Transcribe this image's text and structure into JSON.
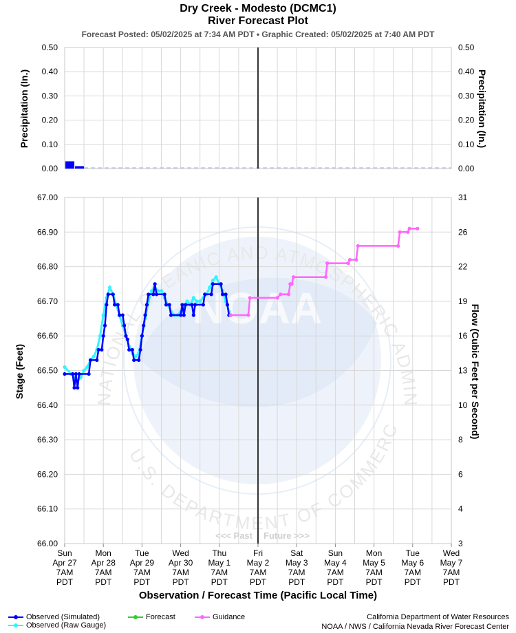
{
  "header": {
    "title": "Dry Creek - Modesto (DCMC1)",
    "subtitle": "River Forecast Plot",
    "posted": "Forecast Posted: 05/02/2025 at 7:34 AM PDT  •  Graphic Created: 05/02/2025 at 7:40 AM PDT"
  },
  "chart_data": [
    {
      "type": "bar",
      "ylabel": "Precipitation (In.)",
      "ylabel_right": "Precipitation (In.)",
      "ylim": [
        0,
        0.5
      ],
      "yticks": [
        "0.00",
        "0.10",
        "0.20",
        "0.30",
        "0.40",
        "0.50"
      ],
      "x_unit": "hours since Sun Apr 27 7AM PDT",
      "bars": [
        {
          "x0": 0,
          "x1": 6,
          "value": 0.03
        },
        {
          "x0": 6,
          "x1": 12,
          "value": 0.01
        }
      ],
      "grid": true
    },
    {
      "type": "line",
      "ylabel": "Stage (Feet)",
      "ylabel_right": "Flow (Cubic Feet per Second)",
      "xlabel": "Observation / Forecast Time (Pacific Local Time)",
      "ylim": [
        66.0,
        67.0
      ],
      "yticks": [
        "66.00",
        "66.10",
        "66.20",
        "66.30",
        "66.40",
        "66.50",
        "66.60",
        "66.70",
        "66.80",
        "66.90",
        "67.00"
      ],
      "right_ticks": [
        {
          "label": "3",
          "stage": 66.0
        },
        {
          "label": "4",
          "stage": 66.1
        },
        {
          "label": "6",
          "stage": 66.2
        },
        {
          "label": "8",
          "stage": 66.3
        },
        {
          "label": "10",
          "stage": 66.4
        },
        {
          "label": "13",
          "stage": 66.5
        },
        {
          "label": "16",
          "stage": 66.6
        },
        {
          "label": "19",
          "stage": 66.7
        },
        {
          "label": "22",
          "stage": 66.8
        },
        {
          "label": "26",
          "stage": 66.9
        },
        {
          "label": "31",
          "stage": 67.0
        }
      ],
      "x_ticks": [
        [
          "Sun",
          "Apr 27",
          "7AM",
          "PDT"
        ],
        [
          "Mon",
          "Apr 28",
          "7AM",
          "PDT"
        ],
        [
          "Tue",
          "Apr 29",
          "7AM",
          "PDT"
        ],
        [
          "Wed",
          "Apr 30",
          "7AM",
          "PDT"
        ],
        [
          "Thu",
          "May 1",
          "7AM",
          "PDT"
        ],
        [
          "Fri",
          "May 2",
          "7AM",
          "PDT"
        ],
        [
          "Sat",
          "May 3",
          "7AM",
          "PDT"
        ],
        [
          "Sun",
          "May 4",
          "7AM",
          "PDT"
        ],
        [
          "Mon",
          "May 5",
          "7AM",
          "PDT"
        ],
        [
          "Tue",
          "May 6",
          "7AM",
          "PDT"
        ],
        [
          "Wed",
          "May 7",
          "7AM",
          "PDT"
        ]
      ],
      "x_unit": "hours since Sun Apr 27 7AM PDT",
      "now_hours": 120,
      "past_label": "<<< Past",
      "future_label": "Future >>>",
      "series": [
        {
          "name": "Observed (Raw Gauge)",
          "color": "#33f3ff",
          "points": [
            [
              0,
              66.51
            ],
            [
              4,
              66.49
            ],
            [
              8,
              66.47
            ],
            [
              10,
              66.48
            ],
            [
              12,
              66.5
            ],
            [
              14,
              66.51
            ],
            [
              16,
              66.53
            ],
            [
              18,
              66.54
            ],
            [
              20,
              66.56
            ],
            [
              22,
              66.6
            ],
            [
              24,
              66.66
            ],
            [
              26,
              66.71
            ],
            [
              28,
              66.74
            ],
            [
              30,
              66.72
            ],
            [
              32,
              66.69
            ],
            [
              34,
              66.66
            ],
            [
              36,
              66.63
            ],
            [
              38,
              66.6
            ],
            [
              40,
              66.57
            ],
            [
              42,
              66.55
            ],
            [
              44,
              66.54
            ],
            [
              46,
              66.55
            ],
            [
              48,
              66.6
            ],
            [
              50,
              66.65
            ],
            [
              52,
              66.7
            ],
            [
              54,
              66.73
            ],
            [
              56,
              66.74
            ],
            [
              58,
              66.73
            ],
            [
              60,
              66.73
            ],
            [
              62,
              66.71
            ],
            [
              64,
              66.69
            ],
            [
              66,
              66.67
            ],
            [
              68,
              66.66
            ],
            [
              70,
              66.66
            ],
            [
              72,
              66.67
            ],
            [
              74,
              66.68
            ],
            [
              76,
              66.7
            ],
            [
              78,
              66.69
            ],
            [
              80,
              66.71
            ],
            [
              82,
              66.7
            ],
            [
              84,
              66.7
            ],
            [
              86,
              66.71
            ],
            [
              88,
              66.72
            ],
            [
              90,
              66.74
            ],
            [
              92,
              66.76
            ],
            [
              94,
              66.77
            ],
            [
              96,
              66.75
            ],
            [
              98,
              66.73
            ],
            [
              100,
              66.7
            ],
            [
              102,
              66.67
            ]
          ]
        },
        {
          "name": "Observed (Simulated)",
          "color": "#0000ff",
          "points": [
            [
              0,
              66.49
            ],
            [
              5,
              66.49
            ],
            [
              6,
              66.45
            ],
            [
              7,
              66.49
            ],
            [
              8,
              66.45
            ],
            [
              9,
              66.49
            ],
            [
              15,
              66.49
            ],
            [
              16,
              66.53
            ],
            [
              20,
              66.53
            ],
            [
              21,
              66.56
            ],
            [
              23,
              66.56
            ],
            [
              24,
              66.6
            ],
            [
              25,
              66.63
            ],
            [
              26,
              66.69
            ],
            [
              27,
              66.72
            ],
            [
              30,
              66.72
            ],
            [
              31,
              66.69
            ],
            [
              33,
              66.69
            ],
            [
              34,
              66.66
            ],
            [
              36,
              66.66
            ],
            [
              37,
              66.63
            ],
            [
              38,
              66.6
            ],
            [
              39,
              66.59
            ],
            [
              40,
              66.56
            ],
            [
              42,
              66.56
            ],
            [
              43,
              66.53
            ],
            [
              46,
              66.53
            ],
            [
              47,
              66.56
            ],
            [
              48,
              66.6
            ],
            [
              49,
              66.63
            ],
            [
              50,
              66.66
            ],
            [
              51,
              66.69
            ],
            [
              52,
              66.72
            ],
            [
              55,
              66.72
            ],
            [
              56,
              66.75
            ],
            [
              57,
              66.72
            ],
            [
              62,
              66.72
            ],
            [
              63,
              66.69
            ],
            [
              65,
              66.69
            ],
            [
              66,
              66.66
            ],
            [
              72,
              66.66
            ],
            [
              73,
              66.69
            ],
            [
              74,
              66.66
            ],
            [
              75,
              66.69
            ],
            [
              79,
              66.69
            ],
            [
              80,
              66.66
            ],
            [
              81,
              66.69
            ],
            [
              86,
              66.69
            ],
            [
              87,
              66.72
            ],
            [
              91,
              66.72
            ],
            [
              92,
              66.75
            ],
            [
              97,
              66.75
            ],
            [
              98,
              66.72
            ],
            [
              100,
              66.72
            ],
            [
              101,
              66.69
            ],
            [
              102,
              66.66
            ],
            [
              103,
              66.66
            ]
          ]
        },
        {
          "name": "Guidance",
          "color": "#ff66ff",
          "points": [
            [
              103,
              66.66
            ],
            [
              114,
              66.66
            ],
            [
              115,
              66.71
            ],
            [
              132,
              66.71
            ],
            [
              134,
              66.72
            ],
            [
              139,
              66.72
            ],
            [
              140,
              66.75
            ],
            [
              141,
              66.75
            ],
            [
              142,
              66.77
            ],
            [
              162,
              66.77
            ],
            [
              163,
              66.81
            ],
            [
              176,
              66.81
            ],
            [
              177,
              66.82
            ],
            [
              181,
              66.82
            ],
            [
              182,
              66.86
            ],
            [
              207,
              66.86
            ],
            [
              208,
              66.9
            ],
            [
              213,
              66.9
            ],
            [
              214,
              66.91
            ],
            [
              219,
              66.91
            ]
          ]
        }
      ],
      "grid": true
    }
  ],
  "legend": {
    "observed_simulated": "Observed (Simulated)",
    "observed_raw": "Observed (Raw Gauge)",
    "forecast": "Forecast",
    "guidance": "Guidance"
  },
  "colors": {
    "observed_simulated": "#0000ff",
    "observed_raw": "#33f3ff",
    "forecast": "#33cc33",
    "guidance": "#ff66ff",
    "now_line": "#333333",
    "grid": "#d8d8d8",
    "watermark": "#e6eef8"
  },
  "credits": {
    "line1": "California Department of Water Resources",
    "line2": "NOAA / NWS / California Nevada River Forecast Center"
  },
  "watermark": {
    "ring_top": "NATIONAL OCEANIC AND ATMOSPHERIC ADMINISTRATION",
    "ring_bottom": "U.S. DEPARTMENT OF COMMERCE",
    "center": "NOAA"
  }
}
